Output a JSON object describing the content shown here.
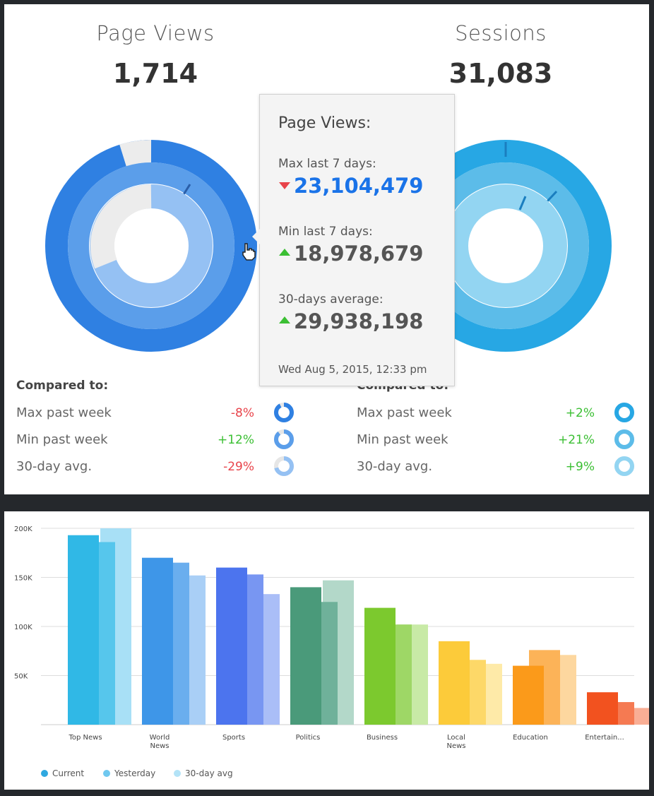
{
  "page_views": {
    "title": "Page Views",
    "value": "1,714",
    "compared_heading": "Compared to:",
    "rows": [
      {
        "label": "Max past week",
        "value": "-8%",
        "sign": "neg",
        "fraction": 0.92
      },
      {
        "label": "Min past week",
        "value": "+12%",
        "sign": "pos",
        "fraction": 0.89
      },
      {
        "label": "30-day avg.",
        "value": "-29%",
        "sign": "neg",
        "fraction": 0.71
      }
    ]
  },
  "sessions": {
    "title": "Sessions",
    "value": "31,083",
    "compared_heading": "Compared to:",
    "rows": [
      {
        "label": "Max past week",
        "value": "+2%",
        "sign": "pos",
        "fraction": 1.0
      },
      {
        "label": "Min past week",
        "value": "+21%",
        "sign": "pos",
        "fraction": 1.0
      },
      {
        "label": "30-day avg.",
        "value": "+9%",
        "sign": "pos",
        "fraction": 1.0
      }
    ]
  },
  "tooltip": {
    "title": "Page Views:",
    "max_label": "Max last 7 days:",
    "max_value": "23,104,479",
    "min_label": "Min last 7 days:",
    "min_value": "18,978,679",
    "avg_label": "30-days average:",
    "avg_value": "29,938,198",
    "timestamp": "Wed Aug 5, 2015, 12:33 pm"
  },
  "colors": {
    "pv_outer": "#2f80e2",
    "pv_middle": "#5b9eea",
    "pv_inner": "#95c1f3",
    "sessions_outer": "#27a7e4",
    "sessions_middle": "#5cbce9",
    "sessions_inner": "#93d5f2",
    "negative": "#e8434a",
    "positive": "#3bbf33"
  },
  "chart_data": {
    "type": "bar",
    "categories": [
      "Top News",
      "World\nNews",
      "Sports",
      "Politics",
      "Business",
      "Local\nNews",
      "Education",
      "Entertain..."
    ],
    "series": [
      {
        "name": "Current",
        "values": [
          193000,
          170000,
          160000,
          140000,
          119000,
          85000,
          60000,
          33000
        ]
      },
      {
        "name": "Yesterday",
        "values": [
          186000,
          165000,
          153000,
          125000,
          102000,
          66000,
          76000,
          23000
        ]
      },
      {
        "name": "30-day avg",
        "values": [
          200000,
          152000,
          133000,
          147000,
          102000,
          62000,
          71000,
          17000
        ]
      }
    ],
    "ylim": [
      0,
      200000
    ],
    "yticks": [
      {
        "value": 50000,
        "label": "50K"
      },
      {
        "value": 100000,
        "label": "100K"
      },
      {
        "value": 150000,
        "label": "150K"
      },
      {
        "value": 200000,
        "label": "200K"
      }
    ],
    "category_colors": [
      [
        "#30b8e6",
        "#56c6ec",
        "#a8e0f6"
      ],
      [
        "#3e96e8",
        "#6aaeee",
        "#a9cff6"
      ],
      [
        "#4c74ee",
        "#7896f2",
        "#aabef7"
      ],
      [
        "#4a9a7a",
        "#6fb19a",
        "#b3d8c9"
      ],
      [
        "#7cc92e",
        "#9ed766",
        "#c8eaa6"
      ],
      [
        "#fccb3a",
        "#fdd868",
        "#feeaa8"
      ],
      [
        "#fb9a1a",
        "#fcb358",
        "#fdd79f"
      ],
      [
        "#f2521f",
        "#f57a52",
        "#f9ae95"
      ]
    ],
    "legend": [
      {
        "label": "Current",
        "color": "#2fa8e0"
      },
      {
        "label": "Yesterday",
        "color": "#6fc8ef"
      },
      {
        "label": "30-day avg",
        "color": "#b3e3f7"
      }
    ],
    "grid": true
  }
}
